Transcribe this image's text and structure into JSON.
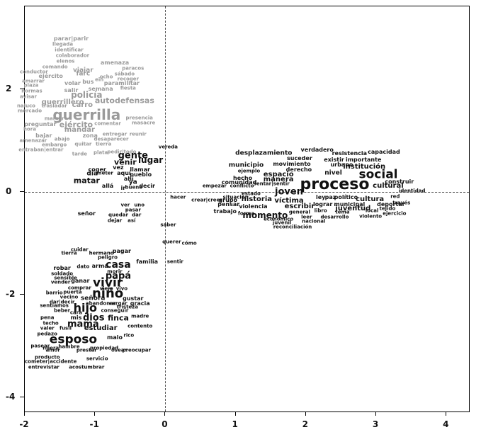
{
  "chart_data": {
    "type": "scatter",
    "title": "",
    "xlabel": "",
    "ylabel": "",
    "xlim": [
      -2.0,
      4.32
    ],
    "ylim": [
      -4.28,
      3.61
    ],
    "x_ticks": [
      "-2",
      "-1",
      "0",
      "1",
      "2",
      "3",
      "4"
    ],
    "x_tick_values": [
      -2,
      -1,
      0,
      1,
      2,
      3,
      4
    ],
    "y_ticks": [
      "2",
      "0",
      "-2",
      "-4"
    ],
    "y_tick_values": [
      2,
      0,
      -2,
      -4
    ],
    "grid": false,
    "zero_lines": true,
    "colors": {
      "black_cluster": "#111111",
      "gray_cluster": "#9a9a9a"
    },
    "words": [
      [
        "parar|parir",
        -1.34,
        2.97,
        8,
        "g"
      ],
      [
        "llegada",
        -1.46,
        2.86,
        7,
        "g"
      ],
      [
        "identificar",
        -1.37,
        2.76,
        7,
        "g"
      ],
      [
        "colaborador",
        -1.32,
        2.65,
        7,
        "g"
      ],
      [
        "elenos",
        -1.42,
        2.54,
        7,
        "g"
      ],
      [
        "comando",
        -1.57,
        2.43,
        7,
        "g"
      ],
      [
        "conductor",
        -1.87,
        2.33,
        7,
        "g"
      ],
      [
        "viajar",
        -1.17,
        2.36,
        9,
        "g"
      ],
      [
        "amenaza",
        -0.72,
        2.5,
        8,
        "g"
      ],
      [
        "paracos",
        -0.46,
        2.4,
        7,
        "g"
      ],
      [
        "ejército",
        -1.63,
        2.25,
        8,
        "g"
      ],
      [
        "farc",
        -1.17,
        2.28,
        9,
        "g"
      ],
      [
        "ocho",
        -0.84,
        2.23,
        7,
        "g"
      ],
      [
        "sábado",
        -0.58,
        2.29,
        7,
        "g"
      ],
      [
        "recoger",
        -0.53,
        2.19,
        7,
        "g"
      ],
      [
        "amarrar",
        -1.88,
        2.15,
        7,
        "g"
      ],
      [
        "plaza",
        -1.91,
        2.06,
        7,
        "g"
      ],
      [
        "volar",
        -1.32,
        2.11,
        8,
        "g"
      ],
      [
        "bus",
        -1.1,
        2.14,
        8,
        "g"
      ],
      [
        "ein",
        -0.94,
        2.17,
        7,
        "g"
      ],
      [
        "paramilitar",
        -0.62,
        2.1,
        8,
        "g"
      ],
      [
        "normas",
        -1.9,
        1.96,
        7,
        "g"
      ],
      [
        "salir",
        -1.34,
        1.97,
        8,
        "g"
      ],
      [
        "semana",
        -0.92,
        1.99,
        8,
        "g"
      ],
      [
        "fiesta",
        -0.53,
        2.01,
        7,
        "g"
      ],
      [
        "avisar",
        -1.95,
        1.85,
        7,
        "g"
      ],
      [
        "policía",
        -1.12,
        1.88,
        12,
        "g"
      ],
      [
        "guerrillero",
        -1.46,
        1.74,
        10,
        "g"
      ],
      [
        "autodefensas",
        -0.58,
        1.77,
        11,
        "g"
      ],
      [
        "naluco",
        -1.98,
        1.67,
        7,
        "g"
      ],
      [
        "trasladar",
        -1.58,
        1.66,
        7,
        "g"
      ],
      [
        "carro",
        -1.18,
        1.68,
        10,
        "g"
      ],
      [
        "mercado",
        -1.93,
        1.57,
        7,
        "g"
      ],
      [
        "guerrilla",
        -1.12,
        1.5,
        20,
        "g"
      ],
      [
        "marcar",
        -1.58,
        1.41,
        7,
        "g"
      ],
      [
        "presencia",
        -0.37,
        1.43,
        7,
        "g"
      ],
      [
        "masacre",
        -0.31,
        1.34,
        7,
        "g"
      ],
      [
        "preguntar",
        -1.78,
        1.3,
        8,
        "g"
      ],
      [
        "ejército",
        -1.27,
        1.31,
        11,
        "g"
      ],
      [
        "comentar",
        -0.82,
        1.32,
        7,
        "g"
      ],
      [
        "hora",
        -1.93,
        1.21,
        7,
        "g"
      ],
      [
        "mandar",
        -1.22,
        1.2,
        10,
        "g"
      ],
      [
        "bajar",
        -1.73,
        1.09,
        8,
        "g"
      ],
      [
        "zona",
        -1.07,
        1.09,
        8,
        "g"
      ],
      [
        "entregar",
        -0.72,
        1.12,
        7,
        "g"
      ],
      [
        "reunir",
        -0.39,
        1.12,
        7,
        "g"
      ],
      [
        "amenazar",
        -1.88,
        0.99,
        7,
        "g"
      ],
      [
        "abajo",
        -1.47,
        1.01,
        7,
        "g"
      ],
      [
        "desaparecer",
        -0.77,
        1.01,
        7,
        "g"
      ],
      [
        "embargo",
        -1.58,
        0.91,
        7,
        "g"
      ],
      [
        "quitar",
        -1.17,
        0.92,
        7,
        "g"
      ],
      [
        "tierra",
        -0.88,
        0.92,
        7,
        "g"
      ],
      [
        "entraban|entrar",
        -1.77,
        0.81,
        7,
        "g"
      ],
      [
        "tarde",
        -1.22,
        0.73,
        7,
        "g"
      ],
      [
        "plata",
        -0.92,
        0.76,
        7,
        "g"
      ],
      [
        "pedir|todo",
        -0.62,
        0.77,
        7,
        "g"
      ],
      [
        "gente",
        -0.46,
        0.7,
        13,
        "b"
      ],
      [
        "vereda",
        0.04,
        0.86,
        7,
        "b"
      ],
      [
        "venir",
        -0.57,
        0.57,
        11,
        "b"
      ],
      [
        "lugar",
        -0.21,
        0.61,
        12,
        "b"
      ],
      [
        "coger",
        -0.97,
        0.43,
        8,
        "b"
      ],
      [
        "vez",
        -0.67,
        0.46,
        8,
        "b"
      ],
      [
        "llamar",
        -0.36,
        0.43,
        8,
        "b"
      ],
      [
        "día",
        -1.04,
        0.34,
        9,
        "b"
      ],
      [
        "meter",
        -0.86,
        0.36,
        7,
        "b"
      ],
      [
        "aquí",
        -0.59,
        0.36,
        8,
        "b"
      ],
      [
        "pueblo",
        -0.35,
        0.33,
        8,
        "b"
      ],
      [
        "ahí",
        -0.52,
        0.25,
        8,
        "b"
      ],
      [
        "ya",
        -0.46,
        0.18,
        9,
        "b"
      ],
      [
        "matar",
        -1.12,
        0.21,
        11,
        "b"
      ],
      [
        "allá",
        -0.82,
        0.1,
        8,
        "b"
      ],
      [
        "ir",
        -0.6,
        0.06,
        8,
        "b"
      ],
      [
        "bueno",
        -0.45,
        0.08,
        7,
        "b"
      ],
      [
        "decir",
        -0.26,
        0.1,
        8,
        "b"
      ],
      [
        "ver",
        -0.57,
        -0.26,
        7,
        "b"
      ],
      [
        "uno",
        -0.37,
        -0.26,
        7,
        "b"
      ],
      [
        "pasar",
        -0.46,
        -0.36,
        7,
        "b"
      ],
      [
        "señor",
        -1.12,
        -0.43,
        8,
        "b"
      ],
      [
        "quedar",
        -0.67,
        -0.46,
        7,
        "b"
      ],
      [
        "dar",
        -0.41,
        -0.46,
        7,
        "b"
      ],
      [
        "dejar",
        -0.72,
        -0.57,
        7,
        "b"
      ],
      [
        "así",
        -0.48,
        -0.57,
        7,
        "b"
      ],
      [
        "saber",
        0.04,
        -0.65,
        7,
        "b"
      ],
      [
        "querer",
        0.09,
        -0.98,
        7,
        "b"
      ],
      [
        "cómo",
        0.34,
        -1.01,
        7,
        "b"
      ],
      [
        "cuidar",
        -1.22,
        -1.14,
        7,
        "b"
      ],
      [
        "hermano",
        -0.91,
        -1.2,
        7,
        "b"
      ],
      [
        "pagar",
        -0.62,
        -1.16,
        8,
        "b"
      ],
      [
        "tierra",
        -1.37,
        -1.21,
        7,
        "b"
      ],
      [
        "peligro",
        -0.82,
        -1.28,
        7,
        "b"
      ],
      [
        "familia",
        -0.26,
        -1.37,
        8,
        "b"
      ],
      [
        "sentir",
        0.14,
        -1.37,
        7,
        "b"
      ],
      [
        "robar",
        -1.47,
        -1.49,
        8,
        "b"
      ],
      [
        "dato",
        -1.17,
        -1.46,
        7,
        "b"
      ],
      [
        "arma",
        -0.93,
        -1.45,
        8,
        "b"
      ],
      [
        "casa",
        -0.67,
        -1.42,
        14,
        "b"
      ],
      [
        "morir",
        -0.72,
        -1.56,
        7,
        "b"
      ],
      [
        "soldado",
        -1.47,
        -1.6,
        7,
        "b"
      ],
      [
        "sensible",
        -1.42,
        -1.68,
        7,
        "b"
      ],
      [
        "papá",
        -0.67,
        -1.64,
        13,
        "b"
      ],
      [
        "vender",
        -1.49,
        -1.77,
        7,
        "b"
      ],
      [
        "ganar",
        -1.21,
        -1.74,
        8,
        "b"
      ],
      [
        "vivir",
        -0.82,
        -1.78,
        17,
        "b"
      ],
      [
        "comprar",
        -1.22,
        -1.88,
        7,
        "b"
      ],
      [
        "viejo",
        -0.84,
        -1.9,
        7,
        "b"
      ],
      [
        "vivo",
        -0.62,
        -1.89,
        7,
        "b"
      ],
      [
        "barrio",
        -1.58,
        -1.97,
        7,
        "b"
      ],
      [
        "puerta",
        -1.32,
        -1.96,
        7,
        "b"
      ],
      [
        "niño",
        -0.82,
        -1.99,
        18,
        "b"
      ],
      [
        "vecino",
        -1.37,
        -2.06,
        7,
        "b"
      ],
      [
        "señora",
        -1.03,
        -2.08,
        9,
        "b"
      ],
      [
        "gustar",
        -0.46,
        -2.08,
        8,
        "b"
      ],
      [
        "dar|decir",
        -1.47,
        -2.15,
        7,
        "b"
      ],
      [
        "sentíamos",
        -1.58,
        -2.22,
        7,
        "b"
      ],
      [
        "abandonar",
        -0.92,
        -2.19,
        7,
        "b"
      ],
      [
        "cargar",
        -0.67,
        -2.18,
        7,
        "b"
      ],
      [
        "gracia",
        -0.36,
        -2.18,
        8,
        "b"
      ],
      [
        "tristeza",
        -0.54,
        -2.25,
        7,
        "b"
      ],
      [
        "hijo",
        -1.14,
        -2.26,
        16,
        "b"
      ],
      [
        "beber",
        -1.47,
        -2.32,
        7,
        "b"
      ],
      [
        "conseguir",
        -0.72,
        -2.32,
        7,
        "b"
      ],
      [
        "cara",
        -1.27,
        -2.36,
        7,
        "b"
      ],
      [
        "pena",
        -1.68,
        -2.46,
        7,
        "b"
      ],
      [
        "mis",
        -1.27,
        -2.46,
        8,
        "b"
      ],
      [
        "dios",
        -1.02,
        -2.46,
        13,
        "b"
      ],
      [
        "finca",
        -0.67,
        -2.46,
        11,
        "b"
      ],
      [
        "madre",
        -0.36,
        -2.43,
        7,
        "b"
      ],
      [
        "techo",
        -1.63,
        -2.57,
        7,
        "b"
      ],
      [
        "mamá",
        -1.17,
        -2.59,
        13,
        "b"
      ],
      [
        "valer",
        -1.68,
        -2.66,
        7,
        "b"
      ],
      [
        "fusil",
        -1.42,
        -2.66,
        7,
        "b"
      ],
      [
        "estudiar",
        -0.92,
        -2.66,
        10,
        "b"
      ],
      [
        "contento",
        -0.36,
        -2.63,
        7,
        "b"
      ],
      [
        "pedazo",
        -1.68,
        -2.77,
        7,
        "b"
      ],
      [
        "esposo",
        -1.31,
        -2.88,
        17,
        "b"
      ],
      [
        "malo",
        -0.72,
        -2.84,
        8,
        "b"
      ],
      [
        "rico",
        -0.52,
        -2.8,
        7,
        "b"
      ],
      [
        "pasear",
        -1.78,
        -3.01,
        7,
        "b"
      ],
      [
        "nuera",
        -1.63,
        -3.05,
        7,
        "b"
      ],
      [
        "hambre",
        -1.37,
        -3.02,
        7,
        "b"
      ],
      [
        "amor",
        -1.6,
        -3.1,
        7,
        "b"
      ],
      [
        "prestar",
        -1.12,
        -3.09,
        7,
        "b"
      ],
      [
        "propiedad",
        -0.87,
        -3.05,
        7,
        "b"
      ],
      [
        "osear",
        -0.66,
        -3.1,
        7,
        "b"
      ],
      [
        "preocupar",
        -0.41,
        -3.1,
        7,
        "b"
      ],
      [
        "producto",
        -1.68,
        -3.23,
        7,
        "b"
      ],
      [
        "servicio",
        -0.97,
        -3.26,
        7,
        "b"
      ],
      [
        "cometer|accidente",
        -1.63,
        -3.32,
        7,
        "b"
      ],
      [
        "entrevistar",
        -1.73,
        -3.42,
        7,
        "b"
      ],
      [
        "acostumbrar",
        -1.12,
        -3.42,
        7,
        "b"
      ],
      [
        "desplazamiento",
        1.4,
        0.74,
        9,
        "b"
      ],
      [
        "verdadero",
        2.16,
        0.81,
        8,
        "b"
      ],
      [
        "resistencia",
        2.62,
        0.74,
        8,
        "b"
      ],
      [
        "capacidad",
        3.11,
        0.77,
        8,
        "b"
      ],
      [
        "suceder",
        1.91,
        0.65,
        8,
        "b"
      ],
      [
        "existir",
        2.4,
        0.61,
        8,
        "b"
      ],
      [
        "importante",
        2.82,
        0.62,
        8,
        "b"
      ],
      [
        "municipio",
        1.15,
        0.5,
        9,
        "b"
      ],
      [
        "movimiento",
        1.8,
        0.54,
        8,
        "b"
      ],
      [
        "urbano",
        2.51,
        0.52,
        8,
        "b"
      ],
      [
        "institución",
        2.83,
        0.48,
        10,
        "b"
      ],
      [
        "ejemplo",
        1.19,
        0.4,
        7,
        "b"
      ],
      [
        "derecho",
        1.9,
        0.43,
        8,
        "b"
      ],
      [
        "espacio",
        1.61,
        0.33,
        10,
        "b"
      ],
      [
        "nivel",
        2.39,
        0.36,
        9,
        "b"
      ],
      [
        "social",
        3.03,
        0.33,
        17,
        "b"
      ],
      [
        "hecho",
        1.1,
        0.26,
        8,
        "b"
      ],
      [
        "comunidad",
        1.05,
        0.17,
        8,
        "b"
      ],
      [
        "manera",
        1.61,
        0.23,
        10,
        "b"
      ],
      [
        "proceso",
        2.41,
        0.14,
        22,
        "b"
      ],
      [
        "cultural",
        3.17,
        0.1,
        10,
        "b"
      ],
      [
        "construir",
        3.33,
        0.19,
        8,
        "b"
      ],
      [
        "identidad",
        3.51,
        0.01,
        7,
        "b"
      ],
      [
        "empezar",
        0.7,
        0.1,
        7,
        "b"
      ],
      [
        "conflicto",
        1.09,
        0.1,
        7,
        "b"
      ],
      [
        "sentar|sentir",
        1.51,
        0.15,
        7,
        "b"
      ],
      [
        "hacer",
        0.18,
        -0.11,
        7,
        "b"
      ],
      [
        "estado",
        1.22,
        -0.04,
        7,
        "b"
      ],
      [
        "joven",
        1.76,
        -0.01,
        13,
        "b"
      ],
      [
        "situación",
        1.0,
        -0.11,
        7,
        "b"
      ],
      [
        "crear|creer",
        0.59,
        -0.17,
        7,
        "b"
      ],
      [
        "grupo",
        0.89,
        -0.17,
        8,
        "b"
      ],
      [
        "historia",
        1.3,
        -0.15,
        10,
        "b"
      ],
      [
        "víctima",
        1.76,
        -0.18,
        10,
        "b"
      ],
      [
        "ley",
        2.21,
        -0.12,
        8,
        "b"
      ],
      [
        "paz",
        2.35,
        -0.12,
        8,
        "b"
      ],
      [
        "político",
        2.57,
        -0.12,
        8,
        "b"
      ],
      [
        "cultura",
        2.91,
        -0.15,
        10,
        "b"
      ],
      [
        "red",
        3.27,
        -0.1,
        7,
        "b"
      ],
      [
        "lograr",
        2.24,
        -0.25,
        8,
        "b"
      ],
      [
        "municipal",
        2.62,
        -0.25,
        8,
        "b"
      ],
      [
        "través",
        3.36,
        -0.22,
        7,
        "b"
      ],
      [
        "pensar",
        0.9,
        -0.25,
        8,
        "b"
      ],
      [
        "violencia",
        1.25,
        -0.29,
        8,
        "b"
      ],
      [
        "escribir",
        1.91,
        -0.29,
        10,
        "b"
      ],
      [
        "juventud",
        2.67,
        -0.33,
        10,
        "b"
      ],
      [
        "tejido",
        3.16,
        -0.33,
        7,
        "b"
      ],
      [
        "deportar",
        3.21,
        -0.25,
        8,
        "b"
      ],
      [
        "local",
        2.94,
        -0.37,
        7,
        "b"
      ],
      [
        "ejercicio",
        3.26,
        -0.43,
        7,
        "b"
      ],
      [
        "trabajo",
        0.85,
        -0.39,
        8,
        "b"
      ],
      [
        "forma",
        1.15,
        -0.43,
        7,
        "b"
      ],
      [
        "momento",
        1.42,
        -0.46,
        12,
        "b"
      ],
      [
        "general",
        1.91,
        -0.4,
        7,
        "b"
      ],
      [
        "libro",
        2.21,
        -0.37,
        7,
        "b"
      ],
      [
        "tema",
        2.52,
        -0.4,
        7,
        "b"
      ],
      [
        "económico",
        1.61,
        -0.54,
        7,
        "b"
      ],
      [
        "leer",
        2.01,
        -0.5,
        7,
        "b"
      ],
      [
        "desarrollo",
        2.41,
        -0.5,
        7,
        "b"
      ],
      [
        "violento",
        2.92,
        -0.48,
        7,
        "b"
      ],
      [
        "juvenil",
        1.66,
        -0.61,
        7,
        "b"
      ],
      [
        "nacional",
        2.11,
        -0.59,
        7,
        "b"
      ],
      [
        "reconciliación",
        1.81,
        -0.7,
        7,
        "b"
      ]
    ]
  }
}
